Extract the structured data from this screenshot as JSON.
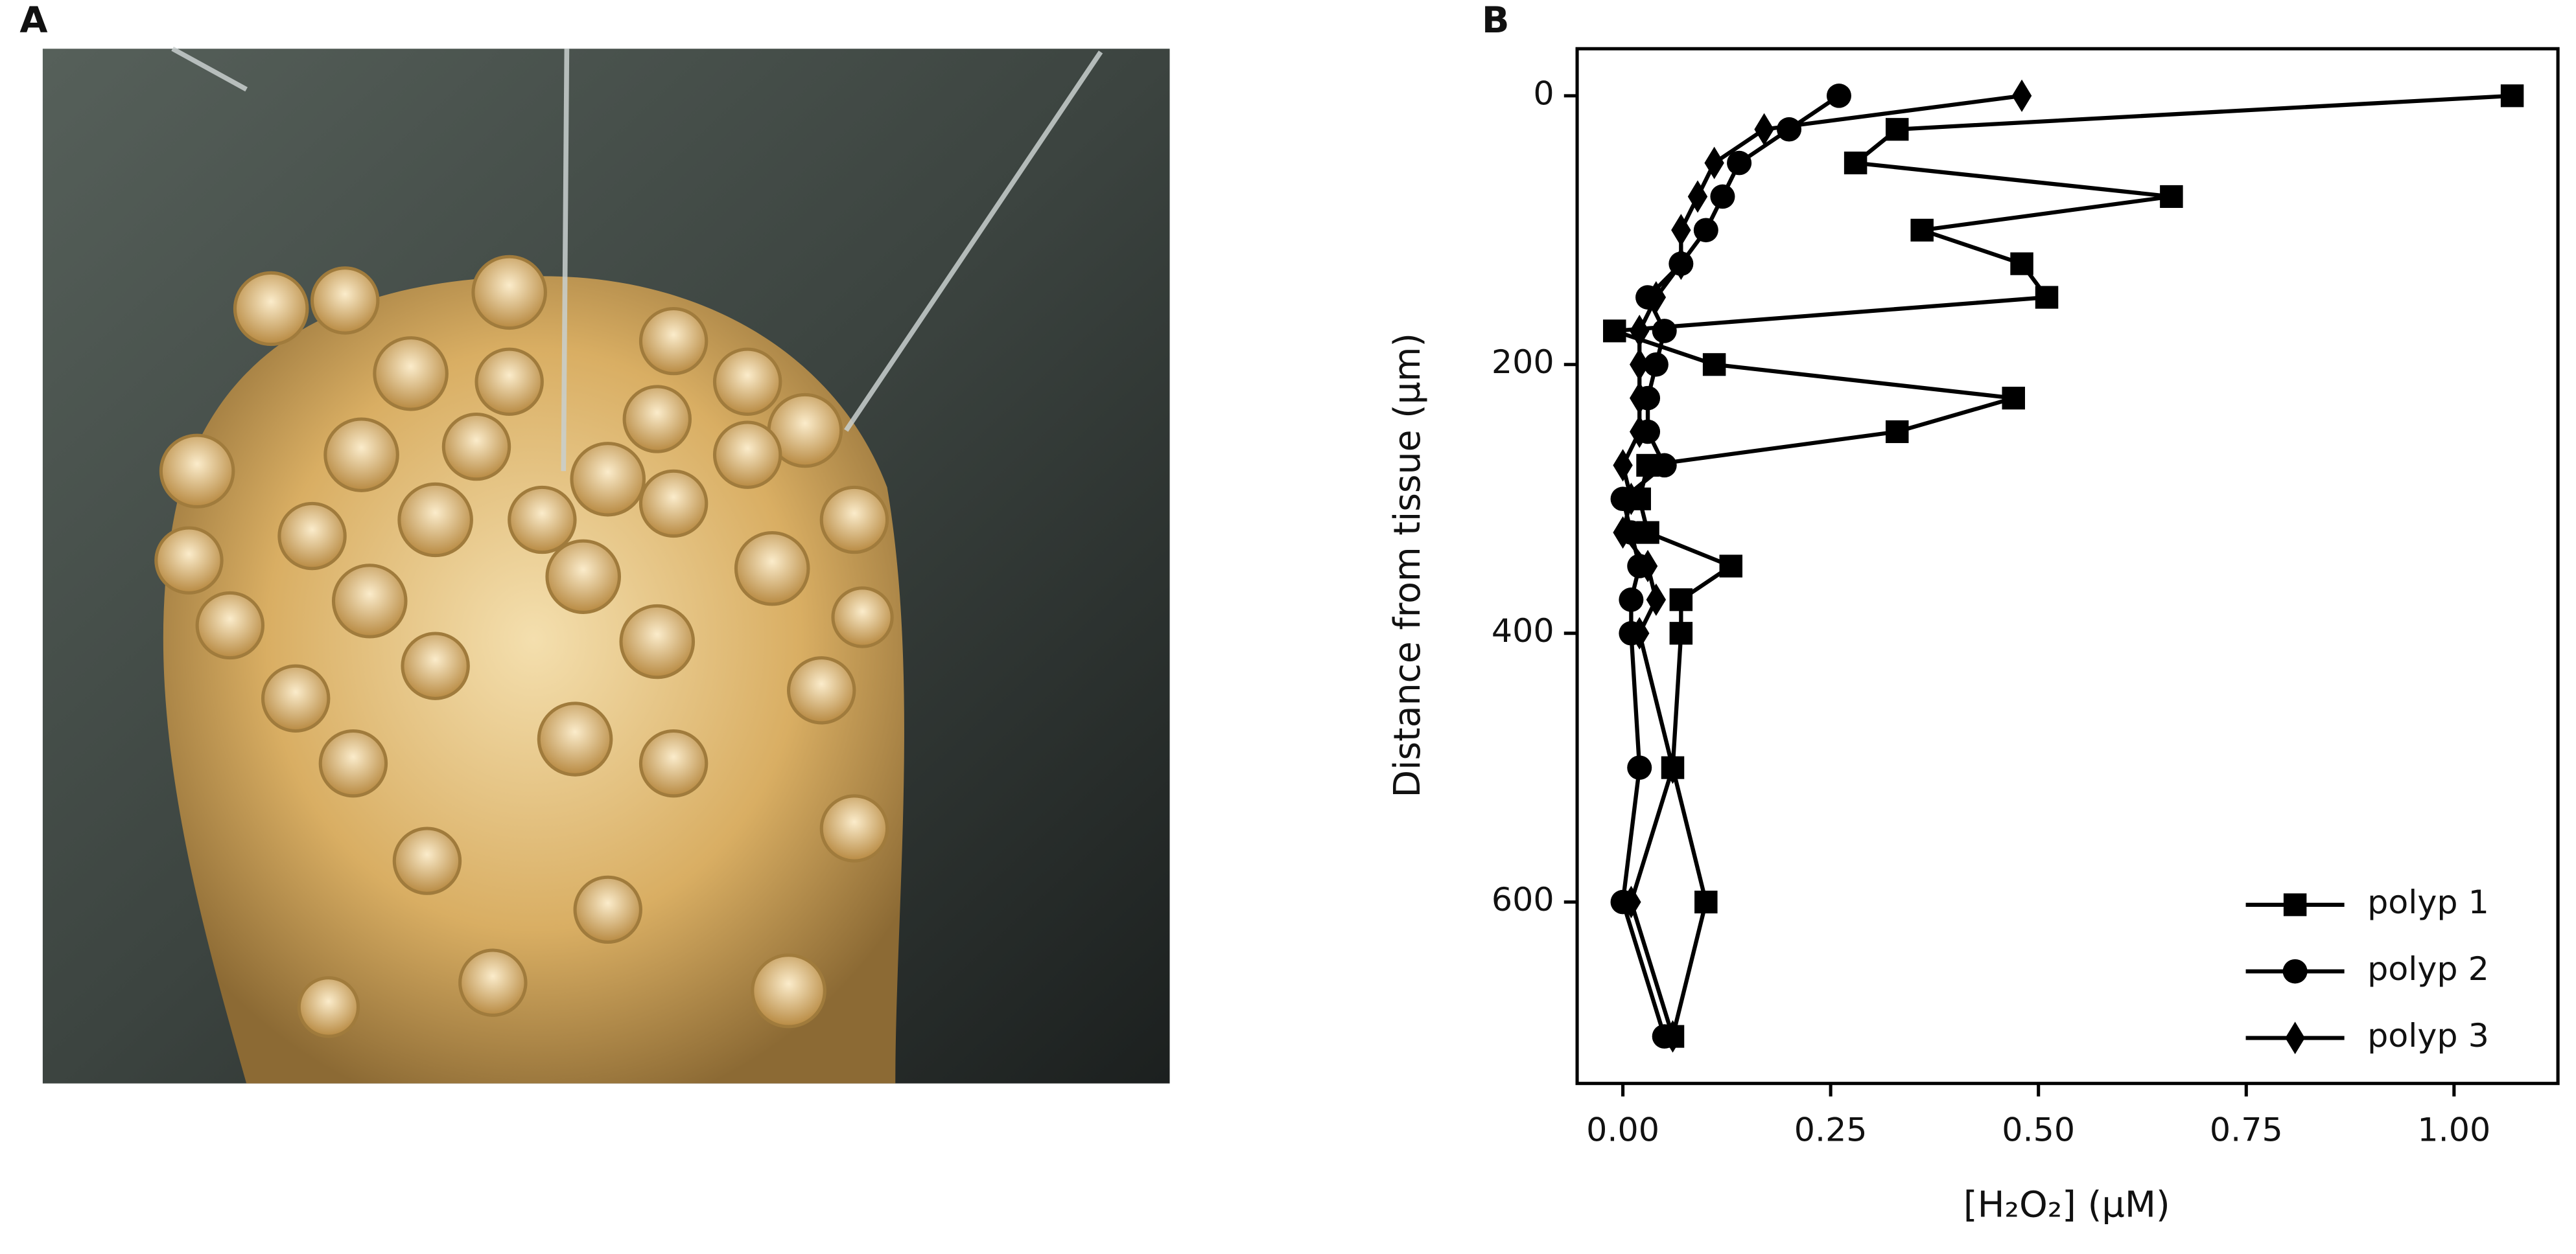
{
  "panel_a": {
    "label": "A"
  },
  "chart_data": {
    "type": "line",
    "panel_label": "B",
    "xlabel": "[H₂O₂] (µM)",
    "ylabel": "Distance from tissue (µm)",
    "xlim": [
      -0.055,
      1.125
    ],
    "ylim": [
      -35,
      735
    ],
    "y_inverted": true,
    "xticks": [
      {
        "value": 0,
        "label": "0.00"
      },
      {
        "value": 0.25,
        "label": "0.25"
      },
      {
        "value": 0.5,
        "label": "0.50"
      },
      {
        "value": 0.75,
        "label": "0.75"
      },
      {
        "value": 1,
        "label": "1.00"
      }
    ],
    "yticks": [
      0,
      200,
      400,
      600
    ],
    "grid": false,
    "legend": "lower right",
    "series": [
      {
        "name": "polyp 1",
        "color": "#000000",
        "marker": "square",
        "distance": [
          0,
          25,
          50,
          75,
          100,
          125,
          150,
          175,
          200,
          225,
          250,
          275,
          300,
          325,
          350,
          375,
          400,
          500,
          600,
          700
        ],
        "values": [
          1.07,
          0.33,
          0.28,
          0.66,
          0.36,
          0.48,
          0.51,
          -0.01,
          0.11,
          0.47,
          0.33,
          0.03,
          0.02,
          0.03,
          0.13,
          0.07,
          0.07,
          0.06,
          0.1,
          0.06
        ]
      },
      {
        "name": "polyp 2",
        "color": "#000000",
        "marker": "circle",
        "distance": [
          0,
          25,
          50,
          75,
          100,
          125,
          150,
          175,
          200,
          225,
          250,
          275,
          300,
          325,
          350,
          375,
          400,
          500,
          600,
          700
        ],
        "values": [
          0.26,
          0.2,
          0.14,
          0.12,
          0.1,
          0.07,
          0.03,
          0.05,
          0.04,
          0.03,
          0.03,
          0.05,
          0.0,
          0.01,
          0.02,
          0.01,
          0.01,
          0.02,
          0.0,
          0.05
        ]
      },
      {
        "name": "polyp 3",
        "color": "#000000",
        "marker": "diamond",
        "distance": [
          0,
          25,
          50,
          75,
          100,
          125,
          150,
          175,
          200,
          225,
          250,
          275,
          300,
          325,
          350,
          375,
          400,
          500,
          600,
          700
        ],
        "values": [
          0.48,
          0.17,
          0.11,
          0.09,
          0.07,
          0.07,
          0.04,
          0.02,
          0.02,
          0.02,
          0.02,
          0.0,
          0.01,
          0.0,
          0.03,
          0.04,
          0.02,
          0.06,
          0.01,
          0.06
        ]
      }
    ]
  }
}
